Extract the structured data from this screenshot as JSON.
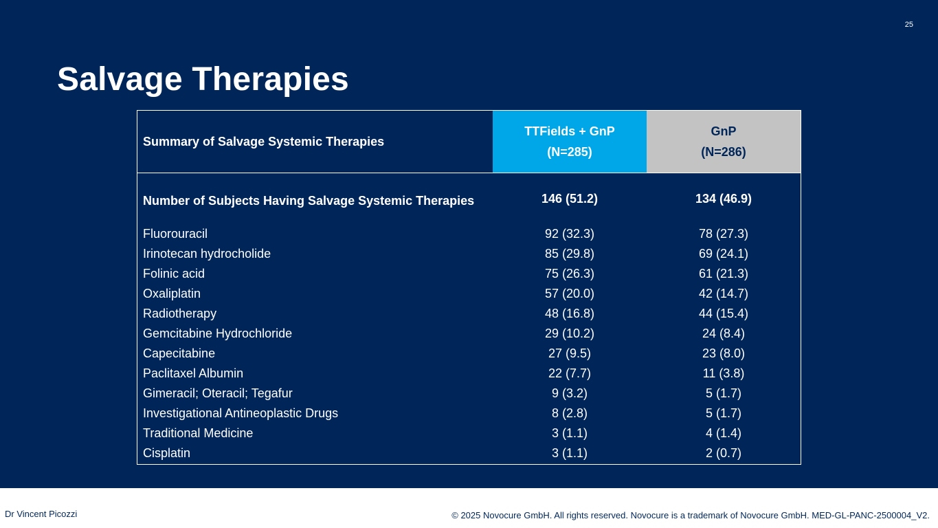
{
  "slide": {
    "page_number": "25",
    "title": "Salvage Therapies"
  },
  "table": {
    "header": {
      "label": "Summary of Salvage Systemic Therapies",
      "arm_a_name": "TTFields + GnP",
      "arm_a_n": "(N=285)",
      "arm_b_name": "GnP",
      "arm_b_n": "(N=286)"
    },
    "summary_row": {
      "label": "Number of Subjects Having Salvage Systemic Therapies",
      "arm_a": "146 (51.2)",
      "arm_b": "134 (46.9)"
    },
    "rows": [
      {
        "label": "Fluorouracil",
        "arm_a": "92 (32.3)",
        "arm_b": "78 (27.3)"
      },
      {
        "label": "Irinotecan hydrocholide",
        "arm_a": "85 (29.8)",
        "arm_b": "69 (24.1)"
      },
      {
        "label": "Folinic acid",
        "arm_a": "75 (26.3)",
        "arm_b": "61 (21.3)"
      },
      {
        "label": "Oxaliplatin",
        "arm_a": "57 (20.0)",
        "arm_b": "42 (14.7)"
      },
      {
        "label": "Radiotherapy",
        "arm_a": "48 (16.8)",
        "arm_b": "44 (15.4)"
      },
      {
        "label": "Gemcitabine Hydrochloride",
        "arm_a": "29 (10.2)",
        "arm_b": "24 (8.4)"
      },
      {
        "label": "Capecitabine",
        "arm_a": "27 (9.5)",
        "arm_b": "23 (8.0)"
      },
      {
        "label": "Paclitaxel Albumin",
        "arm_a": "22 (7.7)",
        "arm_b": "11 (3.8)"
      },
      {
        "label": "Gimeracil; Oteracil; Tegafur",
        "arm_a": "9 (3.2)",
        "arm_b": "5 (1.7)"
      },
      {
        "label": "Investigational Antineoplastic Drugs",
        "arm_a": "8 (2.8)",
        "arm_b": "5 (1.7)"
      },
      {
        "label": "Traditional Medicine",
        "arm_a": "3 (1.1)",
        "arm_b": "4 (1.4)"
      },
      {
        "label": "Cisplatin",
        "arm_a": "3 (1.1)",
        "arm_b": "2 (0.7)"
      }
    ]
  },
  "footer": {
    "presenter": "Dr Vincent Picozzi",
    "copyright": "© 2025 Novocure GmbH. All rights reserved. Novocure is a trademark of Novocure GmbH. MED-GL-PANC-2500004_V2."
  },
  "colors": {
    "background": "#002659",
    "arm_a_header": "#00a7e8",
    "arm_b_header": "#c3c3c3",
    "text": "#ffffff"
  }
}
